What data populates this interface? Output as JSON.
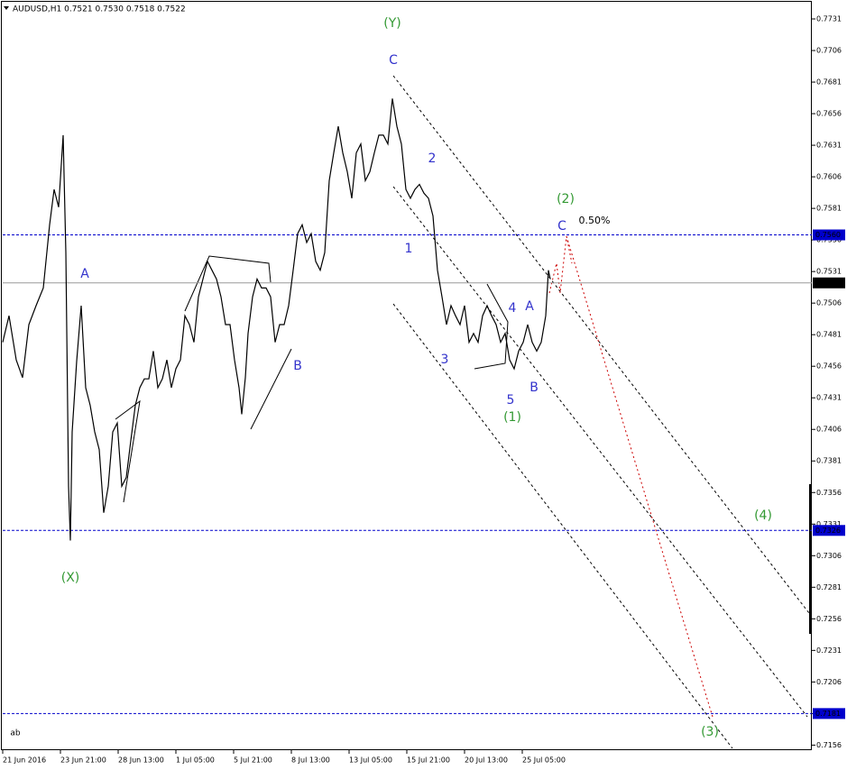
{
  "chart_data": {
    "type": "line",
    "title": "AUDUSD,H1  0.7521 0.7530 0.7518 0.7522",
    "xlim": [
      0,
      897
    ],
    "ylim": [
      0.7152,
      0.7746
    ],
    "xticks": [
      {
        "value": 0,
        "label": "21 Jun 2016"
      },
      {
        "value": 64,
        "label": "23 Jun 21:00"
      },
      {
        "value": 128,
        "label": "28 Jun 13:00"
      },
      {
        "value": 192,
        "label": "1 Jul 05:00"
      },
      {
        "value": 256,
        "label": "5 Jul 21:00"
      },
      {
        "value": 320,
        "label": "8 Jul 13:00"
      },
      {
        "value": 384,
        "label": "13 Jul 05:00"
      },
      {
        "value": 448,
        "label": "15 Jul 21:00"
      },
      {
        "value": 512,
        "label": "20 Jul 13:00"
      },
      {
        "value": 576,
        "label": "25 Jul 05:00"
      }
    ],
    "yticks": [
      0.7731,
      0.7706,
      0.7681,
      0.7656,
      0.7631,
      0.7606,
      0.7581,
      0.7556,
      0.7531,
      0.7506,
      0.7481,
      0.7456,
      0.7431,
      0.7406,
      0.7381,
      0.7356,
      0.7331,
      0.7306,
      0.7281,
      0.7256,
      0.7231,
      0.7206,
      0.7181,
      0.7156
    ],
    "levels": [
      {
        "value": 0.756,
        "label": "0.7560",
        "color": "#0000cc"
      },
      {
        "value": 0.7522,
        "label": "0.7522",
        "color": "#000000"
      },
      {
        "value": 0.7326,
        "label": "0.7326",
        "color": "#0000cc"
      },
      {
        "value": 0.7181,
        "label": "0.7181",
        "color": "#0000cc"
      }
    ],
    "series": [
      {
        "name": "AUDUSD",
        "color": "#000000",
        "x": [
          0,
          7,
          15,
          22,
          29,
          37,
          45,
          52,
          57,
          62,
          67,
          70,
          73,
          75,
          77,
          82,
          87,
          92,
          97,
          102,
          107,
          112,
          117,
          122,
          127,
          132,
          137,
          142,
          147,
          152,
          157,
          162,
          167,
          172,
          177,
          182,
          187,
          192,
          197,
          202,
          207,
          212,
          217,
          222,
          227,
          232,
          237,
          242,
          247,
          252,
          257,
          262,
          265,
          269,
          272,
          277,
          282,
          287,
          292,
          297,
          302,
          307,
          312,
          317,
          322,
          327,
          332,
          337,
          342,
          347,
          352,
          357,
          362,
          367,
          372,
          377,
          382,
          387,
          392,
          397,
          402,
          407,
          412,
          417,
          422,
          427,
          432,
          437,
          442,
          447,
          452,
          457,
          462,
          467,
          472,
          477,
          482,
          487,
          492,
          497,
          502,
          507,
          512,
          517,
          522,
          527,
          532,
          537,
          542,
          547,
          552,
          557,
          562,
          567,
          572,
          577,
          582,
          587,
          592,
          597,
          602,
          605,
          607
        ],
        "values": [
          0.7475,
          0.7496,
          0.7461,
          0.7447,
          0.7489,
          0.7504,
          0.7518,
          0.7568,
          0.7596,
          0.7582,
          0.7639,
          0.7546,
          0.7361,
          0.7318,
          0.7404,
          0.746,
          0.7504,
          0.7439,
          0.7425,
          0.7404,
          0.739,
          0.734,
          0.7361,
          0.7404,
          0.7411,
          0.7361,
          0.7368,
          0.7397,
          0.7425,
          0.7439,
          0.7446,
          0.7446,
          0.7468,
          0.7439,
          0.7446,
          0.7461,
          0.7439,
          0.7454,
          0.7461,
          0.7496,
          0.7489,
          0.7475,
          0.7511,
          0.7525,
          0.7539,
          0.7532,
          0.7525,
          0.7511,
          0.7489,
          0.7489,
          0.7461,
          0.7439,
          0.7418,
          0.7447,
          0.7482,
          0.7511,
          0.7525,
          0.7518,
          0.7518,
          0.7511,
          0.7475,
          0.7489,
          0.7489,
          0.7504,
          0.7532,
          0.7561,
          0.7568,
          0.7554,
          0.7561,
          0.7539,
          0.7532,
          0.7546,
          0.7603,
          0.7625,
          0.7646,
          0.7625,
          0.761,
          0.7589,
          0.7625,
          0.7632,
          0.7603,
          0.761,
          0.7625,
          0.7639,
          0.7639,
          0.7632,
          0.7668,
          0.7646,
          0.7632,
          0.7596,
          0.7589,
          0.7596,
          0.76,
          0.7593,
          0.7589,
          0.7575,
          0.7532,
          0.7511,
          0.7489,
          0.7504,
          0.7496,
          0.7489,
          0.7504,
          0.7475,
          0.7482,
          0.7475,
          0.7496,
          0.7504,
          0.7496,
          0.7489,
          0.7475,
          0.7482,
          0.7461,
          0.7454,
          0.7468,
          0.7475,
          0.7489,
          0.7475,
          0.7468,
          0.7475,
          0.7496,
          0.7532,
          0.7525
        ]
      }
    ],
    "annotations": [
      {
        "text": "(Y)",
        "color": "#339933"
      },
      {
        "text": "C",
        "color": "#3333cc"
      },
      {
        "text": "2",
        "color": "#3333cc"
      },
      {
        "text": "1",
        "color": "#3333cc"
      },
      {
        "text": "3",
        "color": "#3333cc"
      },
      {
        "text": "4",
        "color": "#3333cc"
      },
      {
        "text": "A",
        "color": "#3333cc"
      },
      {
        "text": "5",
        "color": "#3333cc"
      },
      {
        "text": "B",
        "color": "#3333cc"
      },
      {
        "text": "(1)",
        "color": "#339933"
      },
      {
        "text": "(2)",
        "color": "#339933"
      },
      {
        "text": "C",
        "color": "#3333cc"
      },
      {
        "text": "0.50%",
        "color": "#000000"
      },
      {
        "text": "A",
        "color": "#3333cc"
      },
      {
        "text": "B",
        "color": "#3333cc"
      },
      {
        "text": "(X)",
        "color": "#339933"
      },
      {
        "text": "(4)",
        "color": "#339933"
      },
      {
        "text": "(3)",
        "color": "#339933"
      },
      {
        "text": "ab",
        "color": "#000000"
      }
    ]
  }
}
